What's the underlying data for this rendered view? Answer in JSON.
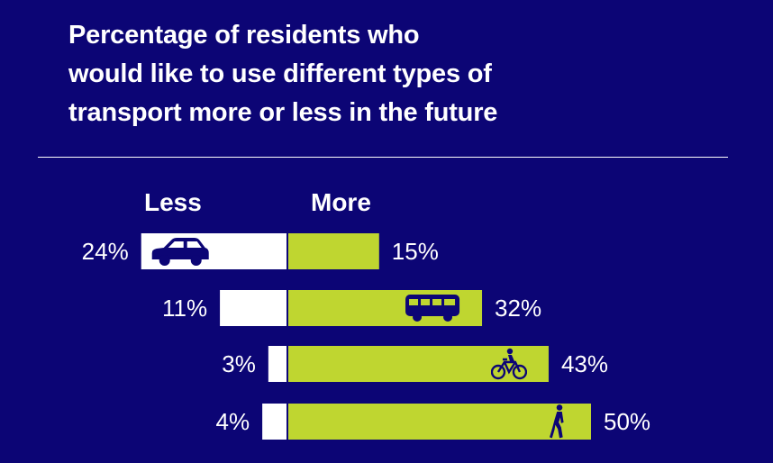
{
  "title_lines": [
    "Percentage of residents who",
    "would like to use different types of",
    "transport more or less in the future"
  ],
  "colors": {
    "background": "#0c0575",
    "less_bar": "#ffffff",
    "more_bar": "#bfd630",
    "icon": "#0c0575",
    "text": "#ffffff"
  },
  "chart_data": {
    "type": "bar",
    "orientation": "diverging-horizontal",
    "categories": [
      "car",
      "bus",
      "bicycle",
      "walking"
    ],
    "category_icons": [
      "car-icon",
      "bus-icon",
      "bicycle-icon",
      "walking-person-icon"
    ],
    "series": [
      {
        "name": "Less",
        "values": [
          24,
          11,
          3,
          4
        ]
      },
      {
        "name": "More",
        "values": [
          15,
          32,
          43,
          50
        ]
      }
    ],
    "value_labels": {
      "less": [
        "24%",
        "11%",
        "3%",
        "4%"
      ],
      "more": [
        "15%",
        "32%",
        "43%",
        "50%"
      ]
    },
    "legend": [
      "Less",
      "More"
    ],
    "legend_placement": "top",
    "grid": false,
    "xlabel": "",
    "ylabel": ""
  }
}
